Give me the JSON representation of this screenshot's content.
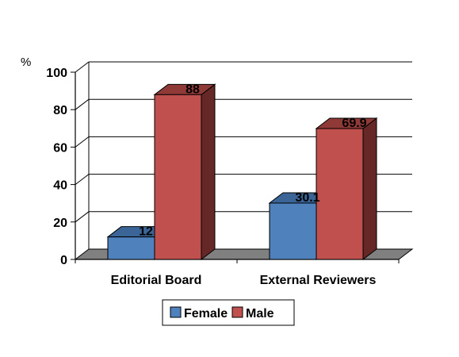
{
  "chart_data": {
    "type": "bar",
    "three_d": true,
    "ylabel": "%",
    "ylim": [
      0,
      100
    ],
    "y_ticks": [
      "0",
      "20",
      "40",
      "60",
      "80",
      "100"
    ],
    "grid": true,
    "categories": [
      "Editorial Board",
      "External Reviewers"
    ],
    "series": [
      {
        "name": "Female",
        "values": [
          12,
          30.1
        ],
        "labels": [
          "12",
          "30.1"
        ],
        "color": "#4f81bd",
        "side_color": "#2d4a6e",
        "top_color": "#3a6596"
      },
      {
        "name": "Male",
        "values": [
          88,
          69.9
        ],
        "labels": [
          "88",
          "69.9"
        ],
        "color": "#c0504d",
        "side_color": "#662826",
        "top_color": "#8f3a37"
      }
    ],
    "legend_position": "bottom",
    "floor_color": "#808080"
  }
}
